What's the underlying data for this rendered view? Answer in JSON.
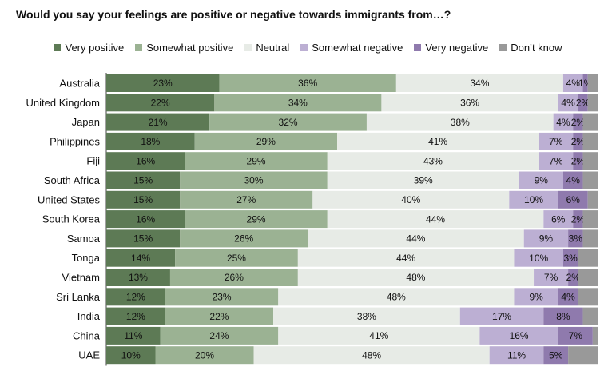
{
  "chart_data": {
    "type": "bar",
    "orientation": "horizontal",
    "stacked": true,
    "title": "Would you say your feelings are positive or negative towards immigrants from…?",
    "legend_position": "top",
    "categories": [
      "Australia",
      "United Kingdom",
      "Japan",
      "Philippines",
      "Fiji",
      "South Africa",
      "United States",
      "South Korea",
      "Samoa",
      "Tonga",
      "Vietnam",
      "Sri Lanka",
      "India",
      "China",
      "UAE"
    ],
    "series": [
      {
        "name": "Very positive",
        "color": "#5d7a55",
        "values": [
          23,
          22,
          21,
          18,
          16,
          15,
          15,
          16,
          15,
          14,
          13,
          12,
          12,
          11,
          10
        ]
      },
      {
        "name": "Somewhat positive",
        "color": "#9bb293",
        "values": [
          36,
          34,
          32,
          29,
          29,
          30,
          27,
          29,
          26,
          25,
          26,
          23,
          22,
          24,
          20
        ]
      },
      {
        "name": "Neutral",
        "color": "#e7ebe6",
        "values": [
          34,
          36,
          38,
          41,
          43,
          39,
          40,
          44,
          44,
          44,
          48,
          48,
          38,
          41,
          48
        ]
      },
      {
        "name": "Somewhat negative",
        "color": "#bcafd3",
        "values": [
          4,
          4,
          4,
          7,
          7,
          9,
          10,
          6,
          9,
          10,
          7,
          9,
          17,
          16,
          11
        ]
      },
      {
        "name": "Very negative",
        "color": "#8f7aad",
        "values": [
          1,
          2,
          2,
          2,
          2,
          4,
          6,
          2,
          3,
          3,
          2,
          4,
          8,
          7,
          5
        ]
      },
      {
        "name": "Don’t know",
        "color": "#999999",
        "values": [
          2,
          2,
          3,
          3,
          3,
          3,
          2,
          3,
          3,
          4,
          4,
          4,
          3,
          1,
          6
        ]
      }
    ],
    "xlim": [
      0,
      100
    ],
    "grid": false
  }
}
